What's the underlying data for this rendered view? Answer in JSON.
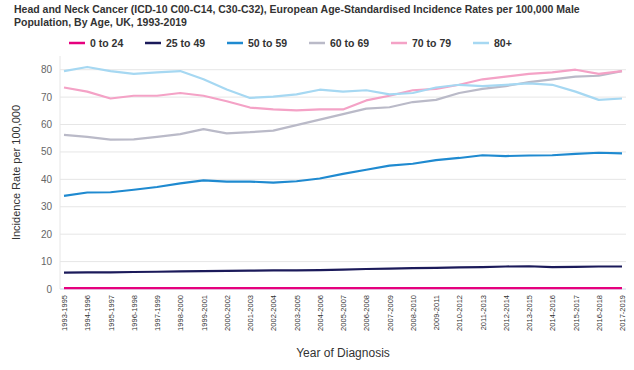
{
  "chart_data": {
    "type": "line",
    "title": "Head and Neck Cancer (ICD-10 C00-C14, C30-C32), European Age-Standardised Incidence Rates per 100,000 Male Population, By Age, UK, 1993-2019",
    "x_label": "Year of Diagnosis",
    "y_label": "Incidence Rate per 100,000",
    "categories": [
      "1993-1995",
      "1994-1996",
      "1995-1997",
      "1996-1998",
      "1997-1999",
      "1998-2000",
      "1999-2001",
      "2000-2002",
      "2001-2003",
      "2002-2004",
      "2003-2005",
      "2004-2006",
      "2005-2007",
      "2006-2008",
      "2007-2009",
      "2008-2010",
      "2009-2011",
      "2010-2012",
      "2011-2013",
      "2012-2014",
      "2013-2015",
      "2014-2016",
      "2015-2017",
      "2016-2018",
      "2017-2019"
    ],
    "series": [
      {
        "name": "0 to 24",
        "color": "#e6007e",
        "values": [
          0.3,
          0.3,
          0.3,
          0.3,
          0.3,
          0.3,
          0.3,
          0.3,
          0.3,
          0.3,
          0.3,
          0.3,
          0.3,
          0.3,
          0.3,
          0.3,
          0.3,
          0.3,
          0.3,
          0.3,
          0.3,
          0.3,
          0.3,
          0.3,
          0.3
        ]
      },
      {
        "name": "25 to 49",
        "color": "#1b1a5a",
        "values": [
          6.0,
          6.1,
          6.1,
          6.2,
          6.3,
          6.4,
          6.5,
          6.6,
          6.7,
          6.8,
          6.8,
          6.9,
          7.1,
          7.3,
          7.4,
          7.6,
          7.7,
          7.9,
          8.0,
          8.2,
          8.3,
          8.0,
          8.1,
          8.2,
          8.2
        ]
      },
      {
        "name": "50 to 59",
        "color": "#1f8ad0",
        "values": [
          34.0,
          35.2,
          35.3,
          36.2,
          37.2,
          38.5,
          39.6,
          39.2,
          39.2,
          38.8,
          39.3,
          40.3,
          42.0,
          43.5,
          45.0,
          45.7,
          47.0,
          47.8,
          48.8,
          48.5,
          48.7,
          48.8,
          49.3,
          49.7,
          49.5
        ]
      },
      {
        "name": "60 to 69",
        "color": "#babac8",
        "values": [
          56.2,
          55.5,
          54.5,
          54.6,
          55.5,
          56.5,
          58.3,
          56.8,
          57.2,
          57.8,
          59.8,
          61.8,
          63.8,
          65.8,
          66.3,
          68.2,
          69.0,
          71.5,
          73.0,
          74.0,
          75.5,
          76.5,
          77.5,
          77.8,
          79.5
        ]
      },
      {
        "name": "70 to 79",
        "color": "#f4a2c6",
        "values": [
          73.5,
          72.0,
          69.5,
          70.5,
          70.5,
          71.5,
          70.5,
          68.5,
          66.2,
          65.5,
          65.2,
          65.5,
          65.5,
          68.8,
          70.5,
          72.5,
          73.0,
          74.5,
          76.5,
          77.5,
          78.5,
          79.0,
          80.0,
          78.5,
          79.5
        ]
      },
      {
        "name": "80+",
        "color": "#a6d8f2",
        "values": [
          79.5,
          81.0,
          79.5,
          78.5,
          79.0,
          79.5,
          76.5,
          72.8,
          69.7,
          70.2,
          71.0,
          72.7,
          72.0,
          72.5,
          71.0,
          71.5,
          73.5,
          74.5,
          74.0,
          74.5,
          75.0,
          74.5,
          72.0,
          69.0,
          69.5
        ]
      }
    ],
    "ylim": [
      0,
      85
    ],
    "yticks": [
      0,
      10,
      20,
      30,
      40,
      50,
      60,
      70,
      80
    ],
    "grid": true,
    "legend": "top"
  }
}
